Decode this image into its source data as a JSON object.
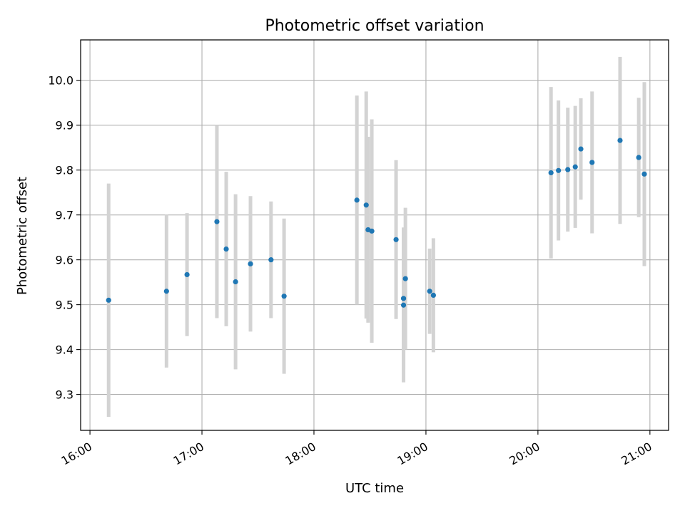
{
  "chart_data": {
    "type": "scatter",
    "title": "Photometric offset variation",
    "xlabel": "UTC time",
    "ylabel": "Photometric offset",
    "x_ticks": [
      "16:00",
      "17:00",
      "18:00",
      "19:00",
      "20:00",
      "21:00"
    ],
    "y_ticks": [
      "9.3",
      "9.4",
      "9.5",
      "9.6",
      "9.7",
      "9.8",
      "9.9",
      "10.0"
    ],
    "xlim": [
      "15:55",
      "21:10"
    ],
    "ylim": [
      9.22,
      10.09
    ],
    "grid": true,
    "point_color": "#1f77b4",
    "errorbar_color": "#d3d3d3",
    "points": [
      {
        "t": "16:10",
        "y": 9.51,
        "err": 0.26
      },
      {
        "t": "16:41",
        "y": 9.53,
        "err": 0.17
      },
      {
        "t": "16:52",
        "y": 9.567,
        "err": 0.137
      },
      {
        "t": "17:08",
        "y": 9.685,
        "err": 0.215
      },
      {
        "t": "17:13",
        "y": 9.624,
        "err": 0.172
      },
      {
        "t": "17:18",
        "y": 9.551,
        "err": 0.195
      },
      {
        "t": "17:26",
        "y": 9.591,
        "err": 0.151
      },
      {
        "t": "17:37",
        "y": 9.6,
        "err": 0.13
      },
      {
        "t": "17:44",
        "y": 9.519,
        "err": 0.173
      },
      {
        "t": "18:23",
        "y": 9.733,
        "err": 0.233
      },
      {
        "t": "18:28",
        "y": 9.722,
        "err": 0.253
      },
      {
        "t": "18:29",
        "y": 9.667,
        "err": 0.207
      },
      {
        "t": "18:31",
        "y": 9.664,
        "err": 0.249
      },
      {
        "t": "18:44",
        "y": 9.645,
        "err": 0.177
      },
      {
        "t": "18:48",
        "y": 9.499,
        "err": 0.172
      },
      {
        "t": "18:48",
        "y": 9.514,
        "err": 0.158
      },
      {
        "t": "18:49",
        "y": 9.558,
        "err": 0.158
      },
      {
        "t": "19:02",
        "y": 9.53,
        "err": 0.095
      },
      {
        "t": "19:04",
        "y": 9.521,
        "err": 0.127
      },
      {
        "t": "20:07",
        "y": 9.794,
        "err": 0.191
      },
      {
        "t": "20:11",
        "y": 9.799,
        "err": 0.156
      },
      {
        "t": "20:16",
        "y": 9.801,
        "err": 0.138
      },
      {
        "t": "20:20",
        "y": 9.807,
        "err": 0.136
      },
      {
        "t": "20:23",
        "y": 9.847,
        "err": 0.113
      },
      {
        "t": "20:29",
        "y": 9.817,
        "err": 0.158
      },
      {
        "t": "20:44",
        "y": 9.866,
        "err": 0.186
      },
      {
        "t": "20:54",
        "y": 9.828,
        "err": 0.133
      },
      {
        "t": "20:57",
        "y": 9.791,
        "err": 0.205
      }
    ]
  }
}
